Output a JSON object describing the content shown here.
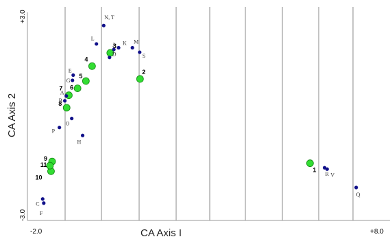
{
  "chart_data": {
    "type": "scatter",
    "xlabel": "CA Axis I",
    "ylabel": "CA Axis 2",
    "xlim": [
      -2.0,
      8.0
    ],
    "ylim": [
      -3.0,
      3.0
    ],
    "x_tick_labels": [
      "-2.0",
      "+8.0"
    ],
    "y_tick_labels": [
      "+3.0",
      "-3.0"
    ],
    "grid": "vertical lines",
    "colors": {
      "species": "#11118a",
      "samples": "#33dd33",
      "sample_edge": "#118811",
      "grid": "#888888"
    },
    "series": [
      {
        "marker": "small dark blue dot",
        "points": [
          {
            "label": "N, T",
            "x": 0.1,
            "y": 2.62
          },
          {
            "label": "L",
            "x": -0.1,
            "y": 2.09
          },
          {
            "label": "K",
            "x": 0.51,
            "y": 1.98
          },
          {
            "label": "J",
            "x": 0.38,
            "y": 1.93
          },
          {
            "label": "M",
            "x": 0.89,
            "y": 1.98
          },
          {
            "label": "S",
            "x": 1.09,
            "y": 1.85
          },
          {
            "label": "D",
            "x": 0.26,
            "y": 1.7
          },
          {
            "label": "E",
            "x": -0.74,
            "y": 1.19
          },
          {
            "label": "G",
            "x": -0.76,
            "y": 1.04
          },
          {
            "label": "A",
            "x": -0.93,
            "y": 0.59
          },
          {
            "label": "B",
            "x": -0.97,
            "y": 0.45
          },
          {
            "label": "O",
            "x": -0.78,
            "y": -0.06
          },
          {
            "label": "P",
            "x": -1.12,
            "y": -0.32
          },
          {
            "label": "H",
            "x": -0.48,
            "y": -0.55
          },
          {
            "label": "C",
            "x": -1.58,
            "y": -2.38
          },
          {
            "label": "F",
            "x": -1.55,
            "y": -2.5
          },
          {
            "label": "R",
            "x": 6.18,
            "y": -1.48
          },
          {
            "label": "V",
            "x": 6.25,
            "y": -1.52
          },
          {
            "label": "Q",
            "x": 7.05,
            "y": -2.05
          }
        ]
      },
      {
        "marker": "large green circle",
        "points": [
          {
            "label": "1",
            "x": 5.78,
            "y": -1.35
          },
          {
            "label": "2",
            "x": 1.1,
            "y": 1.08
          },
          {
            "label": "3",
            "x": 0.28,
            "y": 1.83
          },
          {
            "label": "4",
            "x": -0.22,
            "y": 1.45
          },
          {
            "label": "5",
            "x": -0.39,
            "y": 1.02
          },
          {
            "label": "6",
            "x": -0.62,
            "y": 0.81
          },
          {
            "label": "7",
            "x": -0.86,
            "y": 0.61
          },
          {
            "label": "8",
            "x": -0.92,
            "y": 0.25
          },
          {
            "label": "9",
            "x": -1.32,
            "y": -1.3
          },
          {
            "label": "10",
            "x": -1.35,
            "y": -1.58
          },
          {
            "label": "11",
            "x": -1.38,
            "y": -1.42
          }
        ]
      }
    ]
  }
}
